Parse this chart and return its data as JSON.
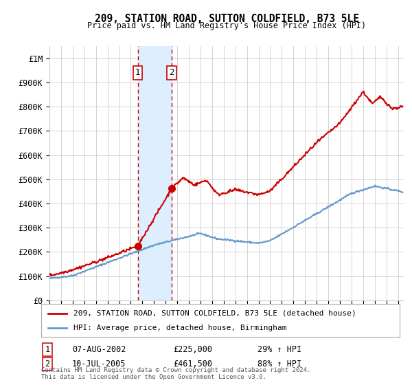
{
  "title": "209, STATION ROAD, SUTTON COLDFIELD, B73 5LE",
  "subtitle": "Price paid vs. HM Land Registry's House Price Index (HPI)",
  "legend_line1": "209, STATION ROAD, SUTTON COLDFIELD, B73 5LE (detached house)",
  "legend_line2": "HPI: Average price, detached house, Birmingham",
  "footnote": "Contains HM Land Registry data © Crown copyright and database right 2024.\nThis data is licensed under the Open Government Licence v3.0.",
  "sale1_label": "1",
  "sale1_date": "07-AUG-2002",
  "sale1_price": "£225,000",
  "sale1_hpi": "29% ↑ HPI",
  "sale1_x": 2002.6,
  "sale1_y": 225000,
  "sale2_label": "2",
  "sale2_date": "10-JUL-2005",
  "sale2_price": "£461,500",
  "sale2_hpi": "88% ↑ HPI",
  "sale2_x": 2005.52,
  "sale2_y": 461500,
  "ylim": [
    0,
    1050000
  ],
  "xlim_start": 1995.0,
  "xlim_end": 2025.5,
  "yticks": [
    0,
    100000,
    200000,
    300000,
    400000,
    500000,
    600000,
    700000,
    800000,
    900000,
    1000000
  ],
  "ytick_labels": [
    "£0",
    "£100K",
    "£200K",
    "£300K",
    "£400K",
    "£500K",
    "£600K",
    "£700K",
    "£800K",
    "£900K",
    "£1M"
  ],
  "red_color": "#cc0000",
  "blue_color": "#6699cc",
  "bg_color": "#ffffff",
  "grid_color": "#cccccc",
  "shade_color": "#ddeeff",
  "title_fontsize": 11,
  "subtitle_fontsize": 9
}
